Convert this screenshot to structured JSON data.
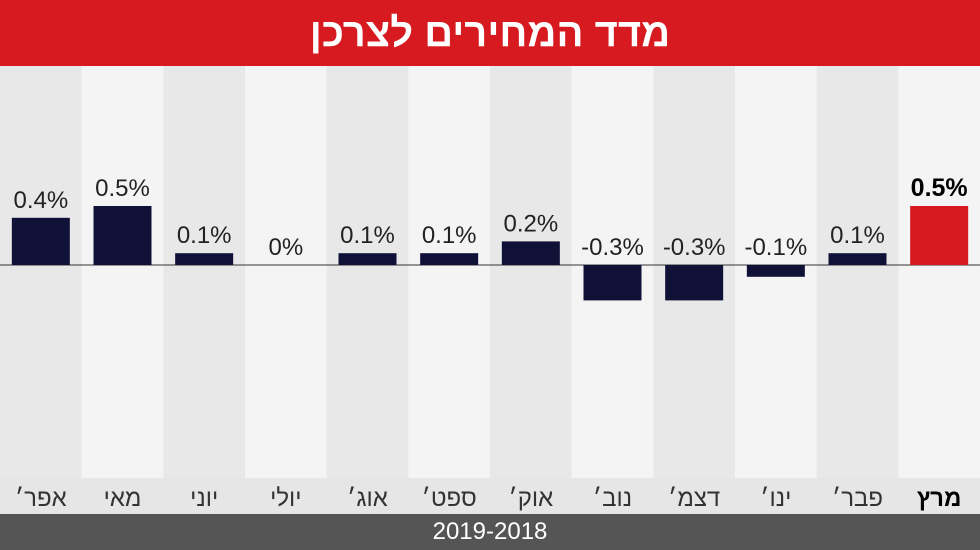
{
  "header": {
    "title": "מדד המחירים לצרכן"
  },
  "footer": {
    "period": "2019-2018"
  },
  "colors": {
    "title_bg": "#d71920",
    "bar_default": "#0f1136",
    "bar_highlight": "#d71920",
    "stripe_dark": "#e8e8e8",
    "stripe_light": "#f4f4f4",
    "footer_bg": "#555555"
  },
  "chart_data": {
    "type": "bar",
    "title": "מדד המחירים לצרכן",
    "xlabel": "2019-2018",
    "ylabel": "",
    "categories": [
      "אפר׳",
      "מאי",
      "יוני",
      "יולי",
      "אוג׳",
      "ספט׳",
      "אוק׳",
      "נוב׳",
      "דצמ׳",
      "ינו׳",
      "פבר׳",
      "מרץ"
    ],
    "values": [
      0.4,
      0.5,
      0.1,
      0,
      0.1,
      0.1,
      0.2,
      -0.3,
      -0.3,
      -0.1,
      0.1,
      0.5
    ],
    "value_labels": [
      "0.4%",
      "0.5%",
      "0.1%",
      "0%",
      "0.1%",
      "0.1%",
      "0.2%",
      "-0.3%",
      "-0.3%",
      "-0.1%",
      "0.1%",
      "0.5%"
    ],
    "highlight_index": 11,
    "unit": "%",
    "grid": false,
    "legend": "none"
  }
}
